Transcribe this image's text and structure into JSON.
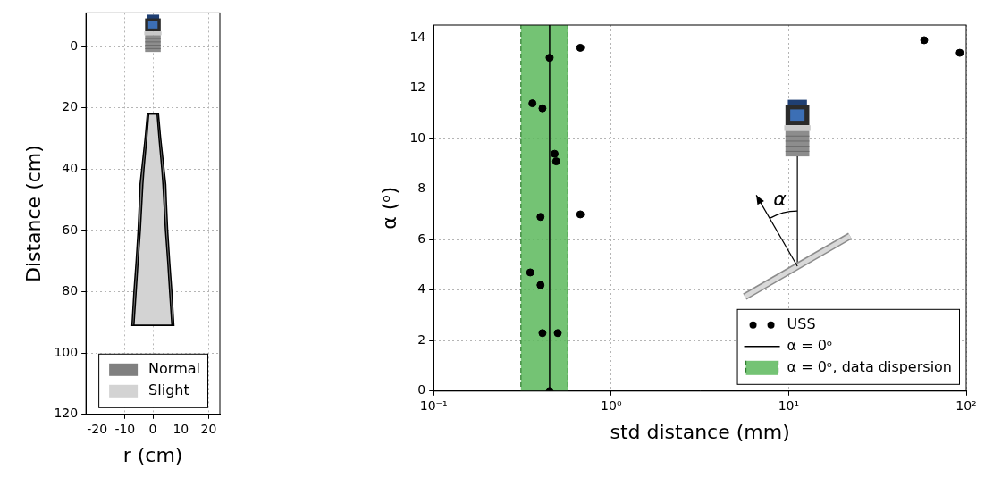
{
  "chart_data": [
    {
      "type": "area",
      "x_label": "r (cm)",
      "y_label": "Distance (cm)",
      "xlim": [
        -24,
        24
      ],
      "xticks": [
        -20,
        -10,
        0,
        10,
        20
      ],
      "ylim": [
        120,
        -11
      ],
      "yticks": [
        0,
        20,
        40,
        60,
        80,
        100,
        120
      ],
      "grid": true,
      "legend": "lower center",
      "series": [
        {
          "name": "Normal",
          "color": "#808080",
          "distance": [
            22,
            30,
            40,
            45,
            50,
            60,
            70,
            80,
            91
          ],
          "r_min": [
            -2.0,
            -2.8,
            -4.0,
            -4.6,
            -4.8,
            -5.3,
            -6.0,
            -6.8,
            -7.5
          ],
          "r_max": [
            2.0,
            2.8,
            4.0,
            4.6,
            4.8,
            5.3,
            6.0,
            6.8,
            7.5
          ]
        },
        {
          "name": "Slight",
          "color": "#d3d3d3",
          "distance": [
            22,
            30,
            40,
            45,
            50,
            60,
            70,
            80,
            91
          ],
          "r_min": [
            -1.5,
            -2.2,
            -3.2,
            -3.6,
            -3.9,
            -4.5,
            -5.3,
            -6.0,
            -6.8
          ],
          "r_max": [
            1.5,
            2.2,
            3.2,
            3.6,
            3.9,
            4.5,
            5.3,
            6.0,
            6.8
          ]
        }
      ]
    },
    {
      "type": "scatter",
      "x_label": "std distance (mm)",
      "y_label": "α (ᵒ)",
      "log": "x",
      "xlim": [
        0.1,
        100
      ],
      "xticks": [
        {
          "value": 0.1,
          "label": "10⁻¹"
        },
        {
          "value": 1,
          "label": "10⁰"
        },
        {
          "value": 10,
          "label": "10¹"
        },
        {
          "value": 100,
          "label": "10²"
        }
      ],
      "ylim": [
        0,
        14.5
      ],
      "yticks": [
        0,
        2,
        4,
        6,
        8,
        10,
        12,
        14
      ],
      "grid": true,
      "legend": "lower right",
      "annotations": [
        {
          "text": "α"
        }
      ],
      "series": [
        {
          "name": "USS",
          "type": "scatter",
          "color": "#000000",
          "marker": "circle",
          "x": [
            0.45,
            0.41,
            0.5,
            0.35,
            0.4,
            0.4,
            0.67,
            0.49,
            0.48,
            0.36,
            0.41,
            0.45,
            0.67,
            58,
            92
          ],
          "values": [
            0,
            2.3,
            2.3,
            4.7,
            4.2,
            6.9,
            7.0,
            9.1,
            9.4,
            11.4,
            11.2,
            13.2,
            13.6,
            13.9,
            13.4
          ]
        },
        {
          "name": "α = 0ᵒ",
          "type": "vline",
          "color": "#000000",
          "line_style": "solid",
          "x": 0.45
        },
        {
          "name": "α = 0ᵒ, data dispersion",
          "type": "band",
          "color": "#5cb85c",
          "x_range": [
            0.31,
            0.57
          ]
        }
      ]
    }
  ]
}
